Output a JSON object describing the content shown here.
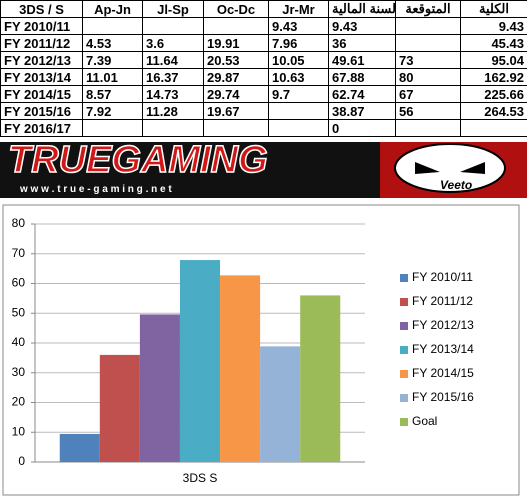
{
  "table": {
    "header": [
      "3DS / S",
      "Ap-Jn",
      "Jl-Sp",
      "Oc-Dc",
      "Jr-Mr",
      "السنة المالية",
      "المتوقعة",
      "الكلية"
    ],
    "rows": [
      [
        "FY 2010/11",
        null,
        null,
        null,
        9.43,
        9.43,
        null,
        9.43
      ],
      [
        "FY 2011/12",
        4.53,
        3.6,
        19.91,
        7.96,
        36,
        null,
        45.43
      ],
      [
        "FY 2012/13",
        7.39,
        11.64,
        20.53,
        10.05,
        49.61,
        73,
        95.04
      ],
      [
        "FY 2013/14",
        11.01,
        16.37,
        29.87,
        10.63,
        67.88,
        80,
        162.92
      ],
      [
        "FY 2014/15",
        8.57,
        14.73,
        29.74,
        9.7,
        62.74,
        67,
        225.66
      ],
      [
        "FY 2015/16",
        7.92,
        11.28,
        19.67,
        null,
        38.87,
        56,
        264.53
      ],
      [
        "FY 2016/17",
        null,
        null,
        null,
        null,
        0,
        null,
        null
      ]
    ]
  },
  "banner": {
    "logo": "TRUEGAMING",
    "url": "w w w . t r u e - g a m i n g . n e t",
    "mascot": "Veeto"
  },
  "chart_data": {
    "type": "bar",
    "categories": [
      "3DS S"
    ],
    "series": [
      {
        "name": "FY 2010/11",
        "color": "#4f81bd",
        "values": [
          9.43
        ]
      },
      {
        "name": "FY 2011/12",
        "color": "#c0504d",
        "values": [
          36
        ]
      },
      {
        "name": "FY 2012/13",
        "color": "#8064a2",
        "values": [
          49.61
        ]
      },
      {
        "name": "FY 2013/14",
        "color": "#4bacc6",
        "values": [
          67.88
        ]
      },
      {
        "name": "FY 2014/15",
        "color": "#f79646",
        "values": [
          62.74
        ]
      },
      {
        "name": "FY 2015/16",
        "color": "#95b3d7",
        "values": [
          38.87
        ]
      },
      {
        "name": "Goal",
        "color": "#9bbb59",
        "values": [
          56
        ]
      }
    ],
    "ylim": [
      0,
      80
    ],
    "yticks": [
      0,
      10,
      20,
      30,
      40,
      50,
      60,
      70,
      80
    ],
    "grid": true,
    "legend": "right"
  }
}
